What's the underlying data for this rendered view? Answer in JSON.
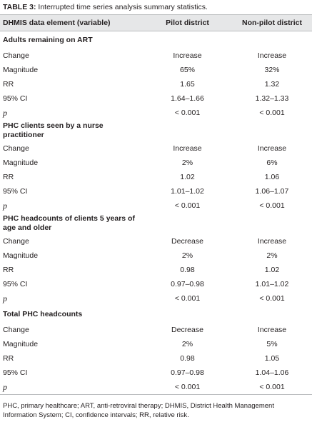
{
  "title": {
    "label": "TABLE 3:",
    "text": "Interrupted time series analysis summary statistics."
  },
  "table": {
    "columns": [
      "DHMIS data element (variable)",
      "Pilot district",
      "Non-pilot district"
    ],
    "sections": [
      {
        "title": "Adults remaining on ART",
        "rows": [
          [
            "Change",
            "Increase",
            "Increase"
          ],
          [
            "Magnitude",
            "65%",
            "32%"
          ],
          [
            "RR",
            "1.65",
            "1.32"
          ],
          [
            "95% CI",
            "1.64–1.66",
            "1.32–1.33"
          ],
          [
            "p",
            "< 0.001",
            "< 0.001"
          ]
        ]
      },
      {
        "title": "PHC clients seen by a nurse practitioner",
        "rows": [
          [
            "Change",
            "Increase",
            "Increase"
          ],
          [
            "Magnitude",
            "2%",
            "6%"
          ],
          [
            "RR",
            "1.02",
            "1.06"
          ],
          [
            "95% CI",
            "1.01–1.02",
            "1.06–1.07"
          ],
          [
            "p",
            "< 0.001",
            "< 0.001"
          ]
        ]
      },
      {
        "title": "PHC headcounts of clients 5 years of age and older",
        "rows": [
          [
            "Change",
            "Decrease",
            "Increase"
          ],
          [
            "Magnitude",
            "2%",
            "2%"
          ],
          [
            "RR",
            "0.98",
            "1.02"
          ],
          [
            "95% CI",
            "0.97–0.98",
            "1.01–1.02"
          ],
          [
            "p",
            "< 0.001",
            "< 0.001"
          ]
        ]
      },
      {
        "title": "Total PHC headcounts",
        "rows": [
          [
            "Change",
            "Decrease",
            "Increase"
          ],
          [
            "Magnitude",
            "2%",
            "5%"
          ],
          [
            "RR",
            "0.98",
            "1.05"
          ],
          [
            "95% CI",
            "0.97–0.98",
            "1.04–1.06"
          ],
          [
            "p",
            "< 0.001",
            "< 0.001"
          ]
        ]
      }
    ]
  },
  "footnote": "PHC, primary healthcare; ART, anti-retroviral therapy; DHMIS, District Health Management Information System; CI, confidence intervals; RR, relative risk."
}
